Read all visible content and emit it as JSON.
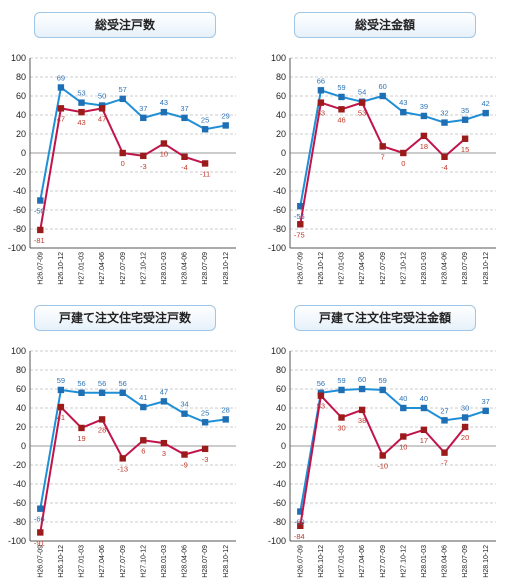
{
  "colors": {
    "series_a": "#1f8fd6",
    "series_b": "#c0144a",
    "marker_a": "#1f6fb5",
    "marker_b": "#9b1b1b"
  },
  "chart_data": [
    {
      "type": "line",
      "title": "総受注戸数",
      "ylim": [
        -100,
        100
      ],
      "yticks": [
        -100,
        -80,
        -60,
        -40,
        -20,
        0,
        20,
        40,
        60,
        80,
        100
      ],
      "categories": [
        "H26.07-09",
        "H26.10-12",
        "H27.01-03",
        "H27.04-06",
        "H27.07-09",
        "H27.10-12",
        "H28.01-03",
        "H28.04-06",
        "H28.07-09",
        "H28.10-12"
      ],
      "series": [
        {
          "values": [
            -50,
            69,
            53,
            50,
            57,
            37,
            43,
            37,
            25,
            29
          ],
          "color": "#1f8fd6"
        },
        {
          "values": [
            -81,
            47,
            43,
            47,
            0,
            -3,
            10,
            -4,
            -11,
            null
          ],
          "color": "#c0144a"
        }
      ],
      "grid": true
    },
    {
      "type": "line",
      "title": "総受注金額",
      "ylim": [
        -100,
        100
      ],
      "yticks": [
        -100,
        -80,
        -60,
        -40,
        -20,
        0,
        20,
        40,
        60,
        80,
        100
      ],
      "categories": [
        "H26.07-09",
        "H26.10-12",
        "H27.01-03",
        "H27.04-06",
        "H27.07-09",
        "H27.10-12",
        "H28.01-03",
        "H28.04-06",
        "H28.07-09",
        "H28.10-12"
      ],
      "series": [
        {
          "values": [
            -56,
            66,
            59,
            54,
            60,
            43,
            39,
            32,
            35,
            42
          ],
          "color": "#1f8fd6"
        },
        {
          "values": [
            -75,
            53,
            46,
            53,
            7,
            0,
            18,
            -4,
            15,
            null
          ],
          "color": "#c0144a"
        }
      ],
      "grid": true
    },
    {
      "type": "line",
      "title": "戸建て注文住宅受注戸数",
      "ylim": [
        -100,
        100
      ],
      "yticks": [
        -100,
        -80,
        -60,
        -40,
        -20,
        0,
        20,
        40,
        60,
        80,
        100
      ],
      "categories": [
        "H26.07-09",
        "H26.10-12",
        "H27.01-03",
        "H27.04-06",
        "H27.07-09",
        "H27.10-12",
        "H28.01-03",
        "H28.04-06",
        "H28.07-09",
        "H28.10-12"
      ],
      "series": [
        {
          "values": [
            -66,
            59,
            56,
            56,
            56,
            41,
            47,
            34,
            25,
            28
          ],
          "color": "#1f8fd6"
        },
        {
          "values": [
            -91,
            41,
            19,
            28,
            -13,
            6,
            3,
            -9,
            -3,
            null
          ],
          "color": "#c0144a"
        }
      ],
      "grid": true
    },
    {
      "type": "line",
      "title": "戸建て注文住宅受注金額",
      "ylim": [
        -100,
        100
      ],
      "yticks": [
        -100,
        -80,
        -60,
        -40,
        -20,
        0,
        20,
        40,
        60,
        80,
        100
      ],
      "categories": [
        "H26.07-09",
        "H26.10-12",
        "H27.01-03",
        "H27.04-06",
        "H27.07-09",
        "H27.10-12",
        "H28.01-03",
        "H28.04-06",
        "H28.07-09",
        "H28.10-12"
      ],
      "series": [
        {
          "values": [
            -69,
            56,
            59,
            60,
            59,
            40,
            40,
            27,
            30,
            37
          ],
          "color": "#1f8fd6"
        },
        {
          "values": [
            -84,
            53,
            30,
            38,
            -10,
            10,
            17,
            -7,
            20,
            null
          ],
          "color": "#c0144a"
        }
      ],
      "grid": true
    }
  ]
}
